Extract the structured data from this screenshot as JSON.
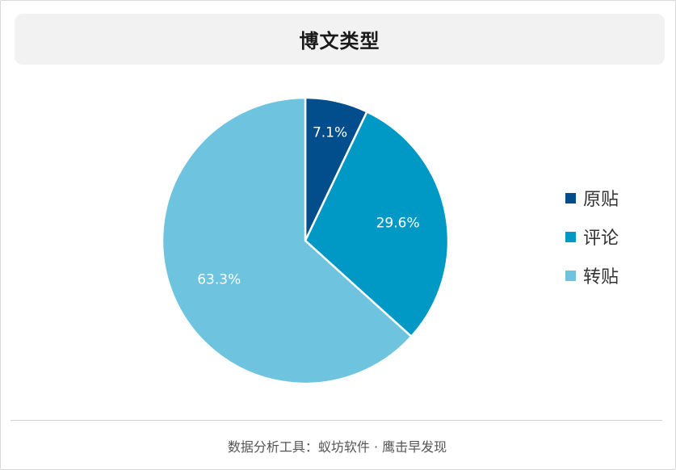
{
  "chart_data": {
    "type": "pie",
    "title": "博文类型",
    "categories": [
      "原贴",
      "评论",
      "转贴"
    ],
    "values": [
      7.1,
      29.6,
      63.3
    ],
    "labels": [
      "7.1%",
      "29.6%",
      "63.3%"
    ],
    "colors": [
      "#024d8c",
      "#0099c6",
      "#6ec3df"
    ],
    "legend_position": "right"
  },
  "footer": {
    "text": "数据分析工具：蚁坊软件 · 鹰击早发现"
  }
}
